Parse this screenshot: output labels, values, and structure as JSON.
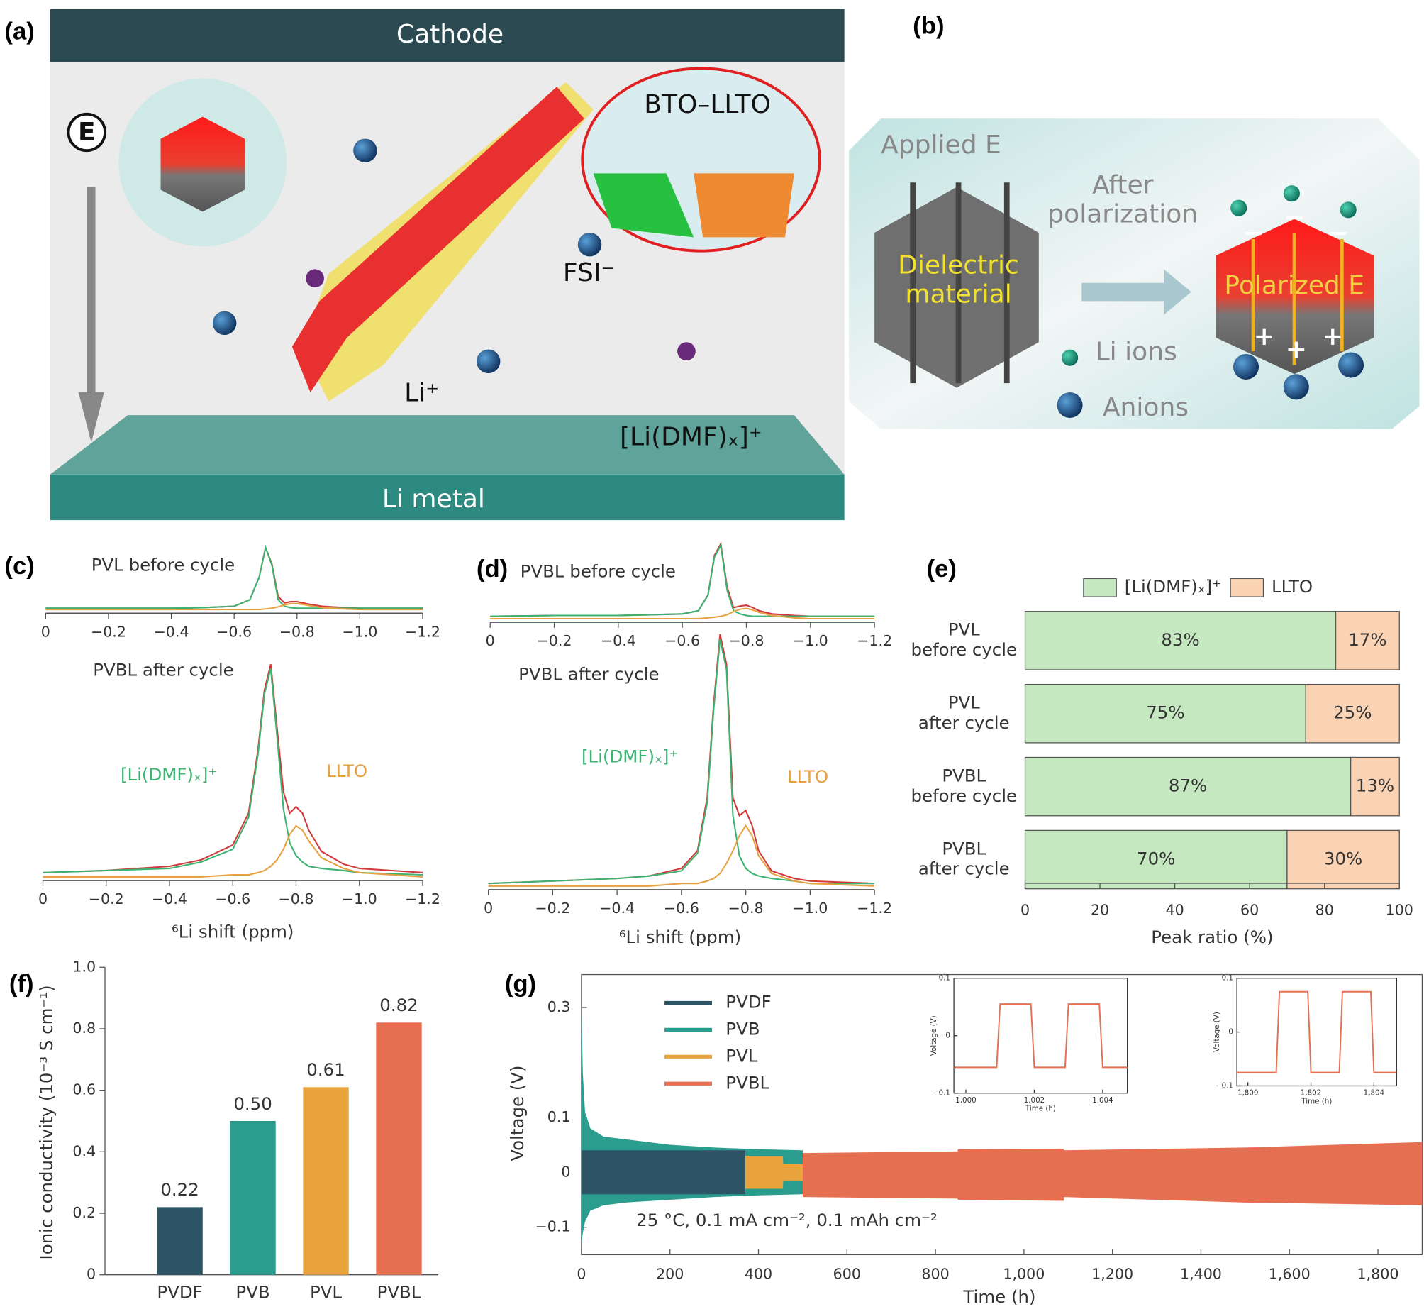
{
  "diagram_a": {
    "label": "(a)",
    "cathode": "Cathode",
    "anode": "Li metal",
    "field": "E",
    "interface": "BTO–LLTO",
    "anion": "FSI⁻",
    "cation": "Li⁺",
    "solvated": "[Li(DMF)ₓ]⁺"
  },
  "diagram_b": {
    "label": "(b)",
    "applied": "Applied E",
    "arrow_text": "After polarization",
    "material": "Dielectric material",
    "polarized": "Polarized E",
    "li_ions": "Li ions",
    "anions": "Anions",
    "negative": "−",
    "positive": "+"
  },
  "chart_data": [
    {
      "type": "nmr",
      "label": "(c)",
      "xlabel": "⁶Li shift (ppm)",
      "xlim": [
        0,
        -1.2
      ],
      "xticks": [
        0,
        {
          "value": -0.2,
          "label": "−0.2"
        },
        {
          "value": -0.4,
          "label": "−0.4"
        },
        {
          "value": -0.6,
          "label": "−0.6"
        },
        {
          "value": -0.8,
          "label": "−0.8"
        },
        {
          "value": -1.0,
          "label": "−1.0"
        },
        {
          "value": -1.2,
          "label": "−1.2"
        }
      ],
      "x": [
        0,
        -0.2,
        -0.4,
        -0.5,
        -0.6,
        -0.65,
        -0.68,
        -0.7,
        -0.72,
        -0.74,
        -0.76,
        -0.78,
        -0.8,
        -0.82,
        -0.84,
        -0.88,
        -0.95,
        -1.0,
        -1.2
      ],
      "subplots": [
        {
          "title": "PVL before cycle",
          "annotations": [],
          "series": [
            {
              "color": "#d03a3a",
              "values": [
                2,
                2,
                2,
                3,
                5,
                15,
                50,
                95,
                70,
                20,
                10,
                12,
                12,
                10,
                8,
                5,
                3,
                2,
                2
              ]
            },
            {
              "color": "#3cb371",
              "values": [
                2,
                2,
                2,
                3,
                5,
                15,
                50,
                95,
                68,
                15,
                5,
                3,
                2,
                2,
                2,
                2,
                2,
                2,
                2
              ]
            },
            {
              "color": "#e8a040",
              "values": [
                0,
                0,
                0,
                0,
                0,
                0,
                0,
                1,
                2,
                4,
                7,
                9,
                9,
                8,
                6,
                3,
                1,
                0,
                0
              ]
            }
          ]
        },
        {
          "title": "PVBL after cycle",
          "annotations": [
            {
              "text": "[Li(DMF)ₓ]⁺",
              "color": "#3cb371"
            },
            {
              "text": "LLTO",
              "color": "#e8a040"
            }
          ],
          "series": [
            {
              "color": "#d03a3a",
              "values": [
                2,
                3,
                5,
                8,
                15,
                30,
                60,
                88,
                100,
                70,
                40,
                30,
                33,
                30,
                22,
                12,
                6,
                4,
                2
              ]
            },
            {
              "color": "#3cb371",
              "values": [
                2,
                3,
                4,
                7,
                13,
                28,
                58,
                86,
                98,
                66,
                32,
                16,
                10,
                7,
                5,
                4,
                3,
                2,
                1
              ]
            },
            {
              "color": "#e8a040",
              "values": [
                0,
                0,
                0,
                0,
                1,
                1,
                2,
                3,
                5,
                8,
                13,
                20,
                24,
                22,
                17,
                9,
                4,
                2,
                0
              ]
            }
          ]
        }
      ]
    },
    {
      "type": "nmr",
      "label": "(d)",
      "xlabel": "⁶Li shift (ppm)",
      "xlim": [
        0,
        -1.2
      ],
      "xticks": [
        0,
        {
          "value": -0.2,
          "label": "−0.2"
        },
        {
          "value": -0.4,
          "label": "−0.4"
        },
        {
          "value": -0.6,
          "label": "−0.6"
        },
        {
          "value": -0.8,
          "label": "−0.8"
        },
        {
          "value": -1.0,
          "label": "−1.0"
        },
        {
          "value": -1.2,
          "label": "−1.2"
        }
      ],
      "x": [
        0,
        -0.2,
        -0.4,
        -0.5,
        -0.6,
        -0.65,
        -0.68,
        -0.7,
        -0.72,
        -0.74,
        -0.76,
        -0.78,
        -0.8,
        -0.82,
        -0.84,
        -0.88,
        -0.95,
        -1.0,
        -1.2
      ],
      "subplots": [
        {
          "title": "PVBL before cycle",
          "annotations": [],
          "series": [
            {
              "color": "#d03a3a",
              "values": [
                3,
                4,
                4,
                5,
                6,
                10,
                30,
                80,
                95,
                40,
                14,
                16,
                17,
                14,
                10,
                6,
                4,
                3,
                3
              ]
            },
            {
              "color": "#3cb371",
              "values": [
                3,
                4,
                4,
                5,
                6,
                10,
                30,
                78,
                93,
                36,
                10,
                6,
                4,
                3,
                3,
                3,
                3,
                3,
                3
              ]
            },
            {
              "color": "#e8a040",
              "values": [
                0,
                0,
                0,
                0,
                0,
                0,
                1,
                2,
                3,
                5,
                9,
                12,
                13,
                11,
                8,
                4,
                1,
                0,
                0
              ]
            }
          ]
        },
        {
          "title": "PVBL after cycle",
          "annotations": [
            {
              "text": "[Li(DMF)ₓ]⁺",
              "color": "#3cb371"
            },
            {
              "text": "LLTO",
              "color": "#e8a040"
            }
          ],
          "series": [
            {
              "color": "#d03a3a",
              "values": [
                1,
                2,
                3,
                4,
                7,
                14,
                35,
                72,
                100,
                88,
                35,
                28,
                30,
                24,
                14,
                6,
                3,
                2,
                1
              ]
            },
            {
              "color": "#3cb371",
              "values": [
                1,
                2,
                3,
                4,
                6,
                13,
                33,
                70,
                98,
                86,
                28,
                12,
                7,
                5,
                4,
                3,
                2,
                1,
                1
              ]
            },
            {
              "color": "#e8a040",
              "values": [
                0,
                0,
                0,
                0,
                1,
                1,
                2,
                3,
                5,
                9,
                14,
                20,
                24,
                20,
                12,
                5,
                2,
                1,
                0
              ]
            }
          ]
        }
      ]
    },
    {
      "type": "hbar_stacked",
      "label": "(e)",
      "xlabel": "Peak ratio (%)",
      "xlim": [
        0,
        100
      ],
      "xticks": [
        0,
        20,
        40,
        60,
        80,
        100
      ],
      "categories": [
        "PVL before cycle",
        "PVL after cycle",
        "PVBL before cycle",
        "PVBL after cycle"
      ],
      "series": [
        {
          "name": "[Li(DMF)ₓ]⁺",
          "color": "#c5e8c0",
          "values": [
            83,
            75,
            87,
            70
          ],
          "value_labels": [
            "83%",
            "75%",
            "87%",
            "70%"
          ]
        },
        {
          "name": "LLTO",
          "color": "#f9d3b4",
          "values": [
            17,
            25,
            13,
            30
          ],
          "value_labels": [
            "17%",
            "25%",
            "13%",
            "30%"
          ]
        }
      ]
    },
    {
      "type": "bar",
      "label": "(f)",
      "ylabel": "Ionic conductivity (10⁻³ S cm⁻¹)",
      "ylim": [
        0,
        1.0
      ],
      "yticks": [
        0,
        0.2,
        0.4,
        0.6,
        0.8,
        {
          "value": 1.0,
          "label": "1.0"
        }
      ],
      "categories": [
        "PVDF",
        "PVB",
        "PVL",
        "PVBL"
      ],
      "values": [
        0.22,
        0.5,
        0.61,
        0.82
      ],
      "value_labels": [
        "0.22",
        "0.50",
        "0.61",
        "0.82"
      ],
      "colors": [
        "#2e5566",
        "#2a9d8f",
        "#e8a33d",
        "#e76f51"
      ]
    },
    {
      "type": "band",
      "label": "(g)",
      "xlabel": "Time (h)",
      "ylabel": "Voltage (V)",
      "annotation": "25 °C, 0.1 mA cm⁻², 0.1 mAh cm⁻²",
      "xlim": [
        0,
        1900
      ],
      "ylim": [
        -0.15,
        0.36
      ],
      "xticks": [
        0,
        200,
        400,
        600,
        800,
        {
          "value": 1000,
          "label": "1,000"
        },
        {
          "value": 1200,
          "label": "1,200"
        },
        {
          "value": 1400,
          "label": "1,400"
        },
        {
          "value": 1600,
          "label": "1,600"
        },
        {
          "value": 1800,
          "label": "1,800"
        }
      ],
      "yticks": [
        {
          "value": -0.1,
          "label": "−0.1"
        },
        0,
        0.1,
        0.3
      ],
      "series": [
        {
          "name": "PVDF",
          "color": "#2e5566",
          "x": [
            0,
            370
          ],
          "upper": [
            0.04,
            0.04
          ],
          "lower": [
            -0.04,
            -0.04
          ]
        },
        {
          "name": "PVB",
          "color": "#2a9d8f",
          "x": [
            0,
            3,
            8,
            20,
            50,
            100,
            200,
            300,
            400,
            500,
            501,
            620
          ],
          "upper": [
            0.3,
            0.18,
            0.11,
            0.08,
            0.065,
            0.06,
            0.05,
            0.045,
            0.042,
            0.04,
            0.005,
            0.005
          ],
          "lower": [
            -0.13,
            -0.11,
            -0.09,
            -0.07,
            -0.06,
            -0.055,
            -0.05,
            -0.045,
            -0.042,
            -0.04,
            -0.005,
            -0.005
          ]
        },
        {
          "name": "PVL",
          "color": "#e8a33d",
          "x": [
            370,
            455,
            456,
            510,
            511,
            530
          ],
          "upper": [
            0.03,
            0.03,
            0.015,
            0.015,
            0.006,
            0.006
          ],
          "lower": [
            -0.03,
            -0.03,
            -0.015,
            -0.015,
            -0.006,
            -0.006
          ]
        },
        {
          "name": "PVBL",
          "color": "#e76f51",
          "x": [
            500,
            850,
            851,
            1090,
            1091,
            1500,
            1900
          ],
          "upper": [
            0.035,
            0.038,
            0.042,
            0.043,
            0.04,
            0.045,
            0.055
          ],
          "lower": [
            -0.045,
            -0.048,
            -0.05,
            -0.052,
            -0.045,
            -0.055,
            -0.06
          ]
        }
      ],
      "insets": [
        {
          "xlabel": "Time (h)",
          "ylabel": "Voltage (V)",
          "color": "#e76f51",
          "xlim": [
            999.65,
            1004.72
          ],
          "ylim": [
            -0.1,
            0.1
          ],
          "xticks": [
            {
              "value": 1000,
              "label": "1,000"
            },
            {
              "value": 1002,
              "label": "1,002"
            },
            {
              "value": 1004,
              "label": "1,004"
            }
          ],
          "yticks": [
            {
              "value": -0.1,
              "label": "−0.1"
            },
            0,
            0.1
          ],
          "x": [
            999.65,
            1000.9,
            1001,
            1001.9,
            1002,
            1002.9,
            1003,
            1003.9,
            1004,
            1004.72
          ],
          "values": [
            -0.055,
            -0.055,
            0.055,
            0.055,
            -0.055,
            -0.055,
            0.055,
            0.055,
            -0.055,
            -0.055
          ]
        },
        {
          "xlabel": "Time (h)",
          "ylabel": "Voltage (V)",
          "color": "#e76f51",
          "xlim": [
            1799.65,
            1804.72
          ],
          "ylim": [
            -0.1,
            0.1
          ],
          "xticks": [
            {
              "value": 1800,
              "label": "1,800"
            },
            {
              "value": 1802,
              "label": "1,802"
            },
            {
              "value": 1804,
              "label": "1,804"
            }
          ],
          "yticks": [
            {
              "value": -0.1,
              "label": "−0.1"
            },
            0,
            0.1
          ],
          "x": [
            1799.65,
            1800.9,
            1801,
            1801.9,
            1802,
            1802.9,
            1803,
            1803.9,
            1804,
            1804.72
          ],
          "values": [
            -0.075,
            -0.075,
            0.075,
            0.075,
            -0.075,
            -0.075,
            0.075,
            0.075,
            -0.075,
            -0.075
          ]
        }
      ]
    }
  ]
}
